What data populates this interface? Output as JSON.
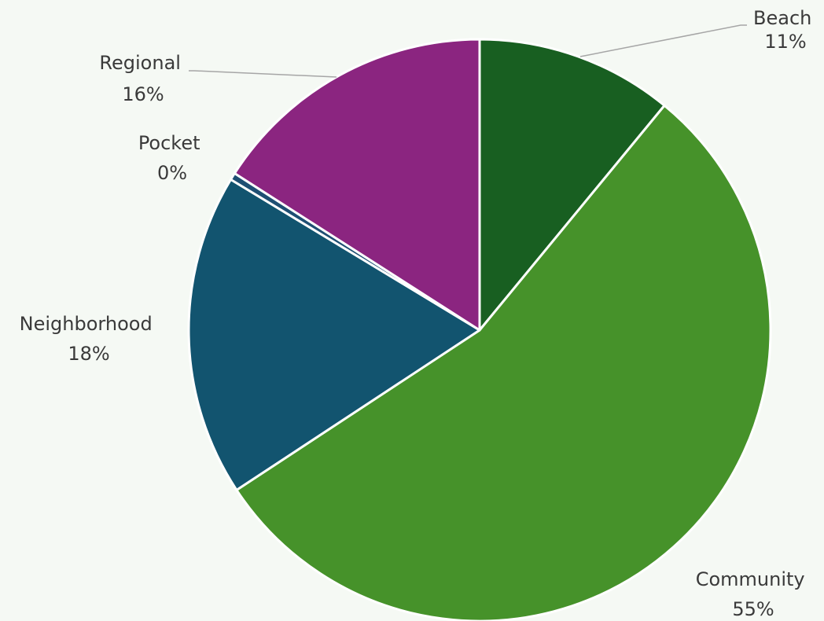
{
  "chart_data": {
    "type": "pie",
    "title": "",
    "categories": [
      "Beach",
      "Community",
      "Neighborhood",
      "Pocket",
      "Regional"
    ],
    "values": [
      11,
      55,
      18,
      0.4,
      16
    ],
    "percent_labels": [
      "11%",
      "55%",
      "18%",
      "0%",
      "16%"
    ],
    "colors": [
      "#185f21",
      "#46922a",
      "#12546f",
      "#1f4f73",
      "#8b2580"
    ],
    "start_angle_deg": 0,
    "direction": "clockwise",
    "legend": "none",
    "data_labels": "category name and percentage"
  }
}
